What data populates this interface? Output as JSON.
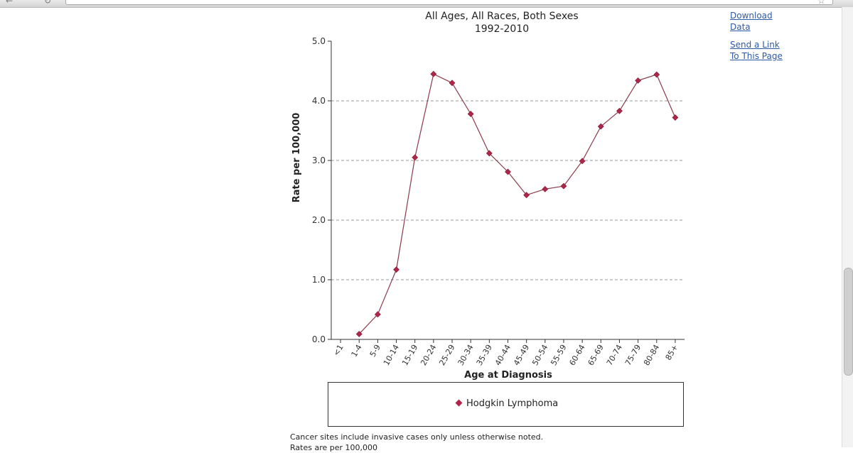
{
  "side_links": {
    "download": "Download Data",
    "send_link": "Send a Link To This Page"
  },
  "chart_data": {
    "type": "line",
    "title": "All Ages, All Races, Both Sexes",
    "subtitle": "1992-2010",
    "xlabel": "Age at Diagnosis",
    "ylabel": "Rate per 100,000",
    "ylim": [
      0,
      5
    ],
    "yticks": [
      "0.0",
      "1.0",
      "2.0",
      "3.0",
      "4.0",
      "5.0"
    ],
    "grid": true,
    "categories": [
      "<1",
      "1-4",
      "5-9",
      "10-14",
      "15-19",
      "20-24",
      "25-29",
      "30-34",
      "35-39",
      "40-44",
      "45-49",
      "50-54",
      "55-59",
      "60-64",
      "65-69",
      "70-74",
      "75-79",
      "80-84",
      "85+"
    ],
    "series": [
      {
        "name": "Hodgkin Lymphoma",
        "color": "#b0264a",
        "line_color": "#8a3a4a",
        "values": [
          null,
          0.09,
          0.42,
          1.17,
          3.05,
          4.45,
          4.3,
          3.78,
          3.12,
          2.81,
          2.42,
          2.52,
          2.57,
          2.99,
          3.57,
          3.83,
          4.34,
          4.44,
          3.72
        ]
      }
    ],
    "legend_position": "bottom"
  },
  "footnotes": {
    "line1": "Cancer sites include invasive cases only unless otherwise noted.",
    "line2": "Rates are per 100,000"
  }
}
